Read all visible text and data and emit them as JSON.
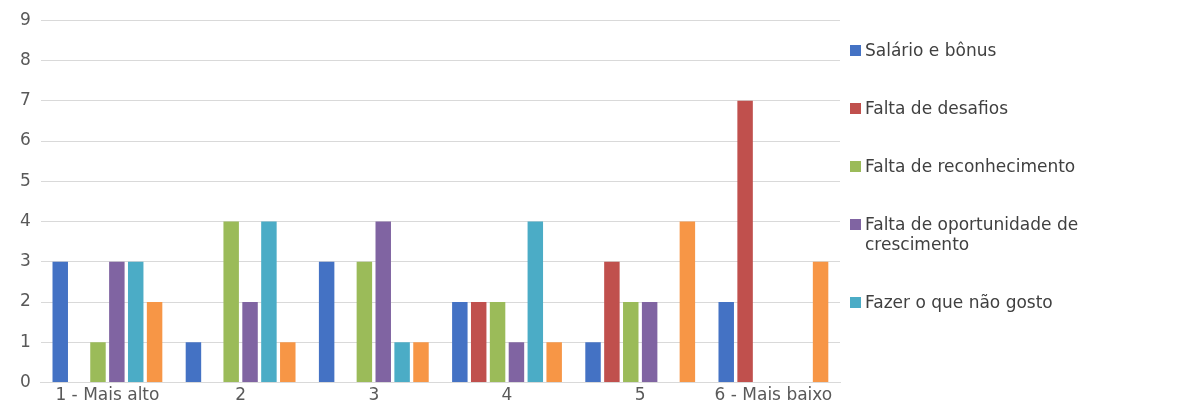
{
  "chart_data": {
    "type": "bar",
    "categories": [
      "1 - Mais alto",
      "2",
      "3",
      "4",
      "5",
      "6 - Mais baixo"
    ],
    "series": [
      {
        "name": "Salário e bônus",
        "color": "#4472c4",
        "values": [
          3,
          1,
          3,
          2,
          1,
          2
        ]
      },
      {
        "name": "Falta de desafios",
        "color": "#c0504d",
        "values": [
          0,
          0,
          0,
          2,
          3,
          7
        ]
      },
      {
        "name": "Falta de reconhecimento",
        "color": "#9bbb59",
        "values": [
          1,
          4,
          3,
          2,
          2,
          0
        ]
      },
      {
        "name": "Falta de oportunidade de crescimento",
        "color": "#8064a2",
        "values": [
          3,
          2,
          4,
          1,
          2,
          0
        ]
      },
      {
        "name": "Fazer o que não gosto",
        "color": "#4bacc6",
        "values": [
          3,
          4,
          1,
          4,
          0,
          0
        ]
      },
      {
        "color": "#f79646",
        "values": [
          2,
          1,
          1,
          1,
          4,
          3
        ]
      }
    ],
    "ylim": [
      0,
      9
    ],
    "yticks": [
      0,
      1,
      2,
      3,
      4,
      5,
      6,
      7,
      8,
      9
    ],
    "grid": "y",
    "legend": "right"
  }
}
